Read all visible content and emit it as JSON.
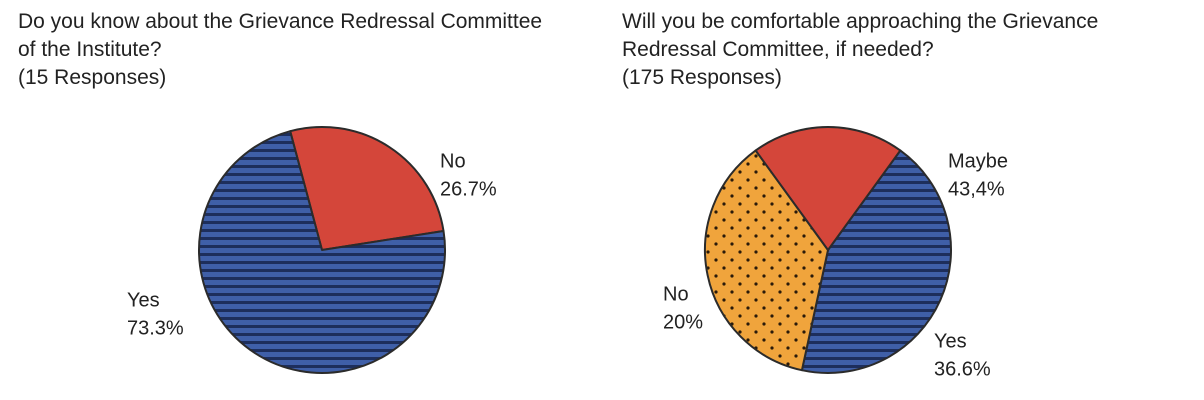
{
  "chart_data": [
    {
      "type": "pie",
      "title": [
        "Do you know about the Grievance Redressal Committee",
        "of the Institute?",
        "(15 Responses)"
      ],
      "slices": [
        {
          "label": "No",
          "value": 26.7,
          "value_text": "26.7%",
          "color": "#d4463a",
          "pattern": "solid"
        },
        {
          "label": "Yes",
          "value": 73.3,
          "value_text": "73.3%",
          "color": "#3f5fa8",
          "pattern": "horizontal-stripes"
        }
      ]
    },
    {
      "type": "pie",
      "title": [
        "Will you be comfortable approaching the Grievance",
        "Redressal Committee, if needed?",
        "(175 Responses)"
      ],
      "slices": [
        {
          "label": "Maybe",
          "value": 43.4,
          "value_text": "43,4%",
          "color": "#3f5fa8",
          "pattern": "horizontal-stripes"
        },
        {
          "label": "Yes",
          "value": 36.6,
          "value_text": "36.6%",
          "color": "#f0a43c",
          "pattern": "dots"
        },
        {
          "label": "No",
          "value": 20,
          "value_text": "20%",
          "color": "#d4463a",
          "pattern": "solid"
        }
      ]
    }
  ]
}
